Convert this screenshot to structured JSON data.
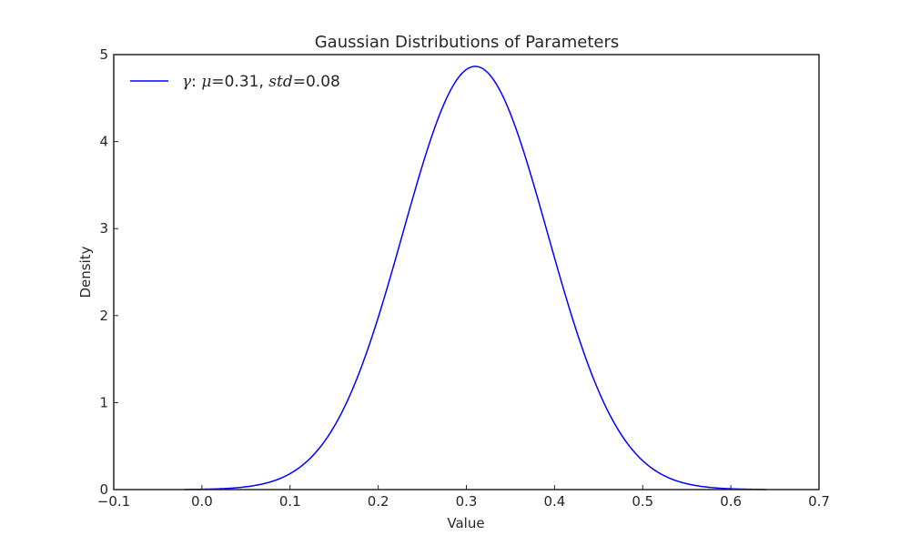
{
  "chart_data": {
    "type": "line",
    "title": "Gaussian Distributions of Parameters",
    "xlabel": "Value",
    "ylabel": "Density",
    "xlim": [
      -0.1,
      0.7
    ],
    "ylim": [
      0,
      5
    ],
    "xticks": [
      -0.1,
      0.0,
      0.1,
      0.2,
      0.3,
      0.4,
      0.5,
      0.6,
      0.7
    ],
    "xtick_labels": [
      "−0.1",
      "0.0",
      "0.1",
      "0.2",
      "0.3",
      "0.4",
      "0.5",
      "0.6",
      "0.7"
    ],
    "yticks": [
      0,
      1,
      2,
      3,
      4,
      5
    ],
    "ytick_labels": [
      "0",
      "1",
      "2",
      "3",
      "4",
      "5"
    ],
    "grid": false,
    "legend_position": "top-left",
    "series": [
      {
        "legend": {
          "symbol": "γ",
          "sep": ": ",
          "mu_symbol": "μ",
          "mu_value": "=0.31, ",
          "std_symbol": "std",
          "std_value": "=0.08"
        },
        "distribution": "normal",
        "mean": 0.31,
        "std": 0.082,
        "x_range": [
          -0.02,
          0.64
        ],
        "color": "#0000ff"
      }
    ]
  }
}
